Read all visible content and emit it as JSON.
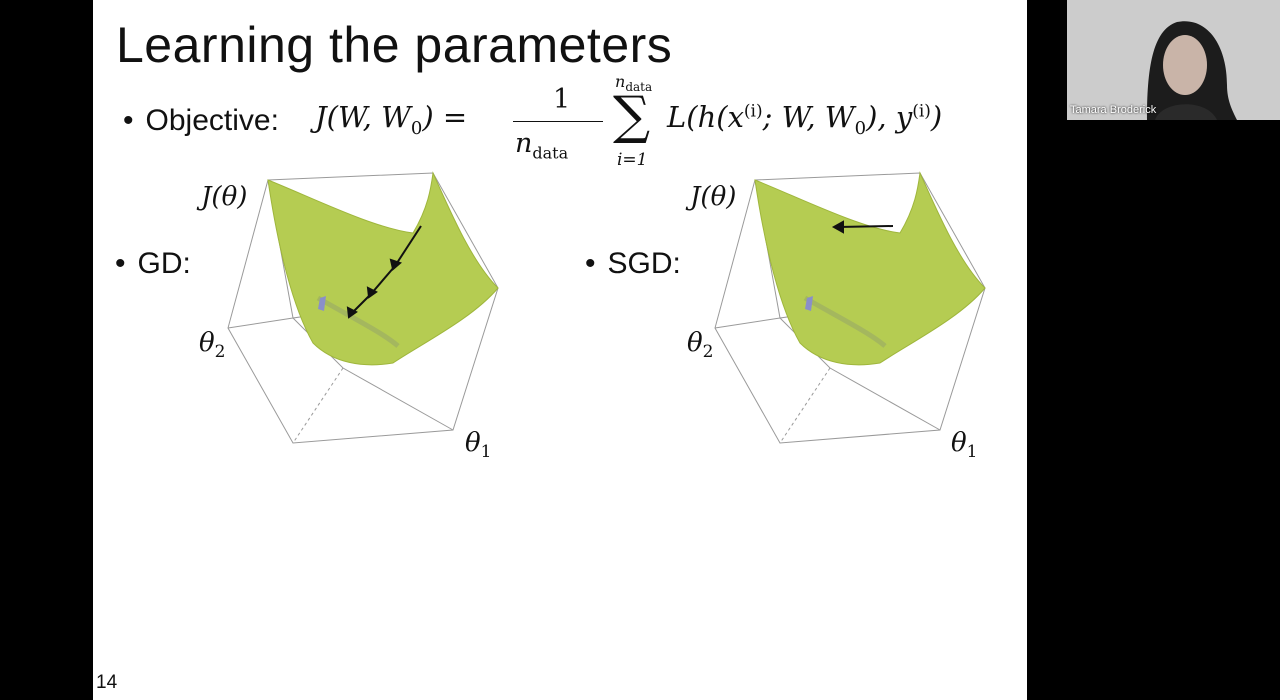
{
  "slide": {
    "title": "Learning the parameters",
    "bullets": {
      "objective_label": "Objective:",
      "gd_label": "GD:",
      "sgd_label": "SGD:",
      "bullet_char": "•"
    },
    "formula": {
      "lhs": "J(W, W",
      "lhs_sub": "0",
      "lhs_close": ") =",
      "numerator": "1",
      "denominator": "n",
      "denominator_sub": "data",
      "sum_symbol": "∑",
      "sum_upper": "n",
      "sum_upper_sub": "data",
      "sum_lower": "i=1",
      "body_1": "L(h(x",
      "body_sup_1": "(i)",
      "body_2": "; W, W",
      "body_sub": "0",
      "body_3": "), y",
      "body_sup_2": "(i)",
      "body_4": ")"
    },
    "plot_labels": {
      "j_theta": "J(θ)",
      "theta_2": "θ",
      "theta_2_sub": "2",
      "theta_1": "θ",
      "theta_1_sub": "1"
    },
    "slide_number": "14"
  },
  "video": {
    "participant_name": "Tamara Broderick"
  },
  "colors": {
    "surface": "#b5cc52",
    "surface_edge": "#9fb63c",
    "box_line": "#9a9a9a",
    "background": "#000000"
  }
}
